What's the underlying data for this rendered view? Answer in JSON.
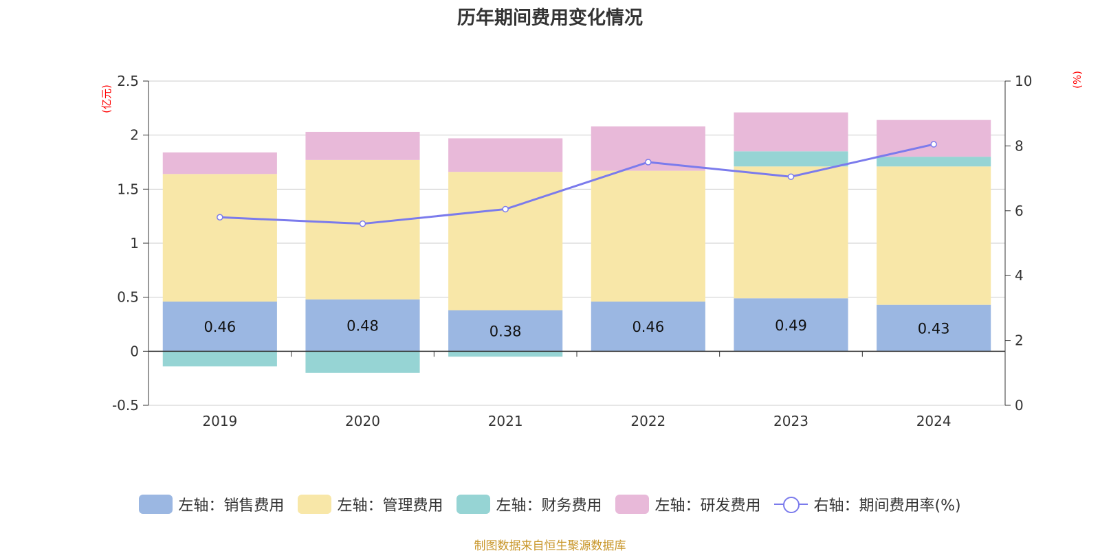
{
  "chart_data": {
    "type": "bar",
    "stacked": true,
    "title": "历年期间费用变化情况",
    "categories": [
      "2019",
      "2020",
      "2021",
      "2022",
      "2023",
      "2024"
    ],
    "y_left": {
      "unit": "(亿元)",
      "ylim": [
        -0.5,
        2.5
      ],
      "ticks": [
        "2.5",
        "2",
        "1.5",
        "1",
        "0.5",
        "0",
        "-0.5"
      ]
    },
    "y_right": {
      "unit": "(%)",
      "ylim": [
        0,
        10
      ],
      "ticks": [
        "10",
        "8",
        "6",
        "4",
        "2",
        "0"
      ]
    },
    "grid": true,
    "legend_position": "bottom",
    "series": [
      {
        "name": "左轴：销售费用",
        "color": "#9bb7e2",
        "values": [
          0.46,
          0.48,
          0.38,
          0.46,
          0.49,
          0.43
        ],
        "labels": [
          "0.46",
          "0.48",
          "0.38",
          "0.46",
          "0.49",
          "0.43"
        ]
      },
      {
        "name": "左轴：管理费用",
        "color": "#f8e7a8",
        "values": [
          1.18,
          1.29,
          1.28,
          1.21,
          1.22,
          1.28
        ]
      },
      {
        "name": "左轴：财务费用",
        "color": "#96d4d4",
        "values": [
          -0.14,
          -0.2,
          -0.05,
          0.0,
          0.14,
          0.09
        ]
      },
      {
        "name": "左轴：研发费用",
        "color": "#e8b9d9",
        "values": [
          0.2,
          0.26,
          0.31,
          0.41,
          0.36,
          0.34
        ]
      }
    ],
    "line_series": {
      "name": "右轴：期间费用率(%)",
      "color": "#7b7bec",
      "axis": "right",
      "values": [
        5.8,
        5.6,
        6.05,
        7.5,
        7.05,
        8.05
      ]
    }
  },
  "source_note": "制图数据来自恒生聚源数据库"
}
